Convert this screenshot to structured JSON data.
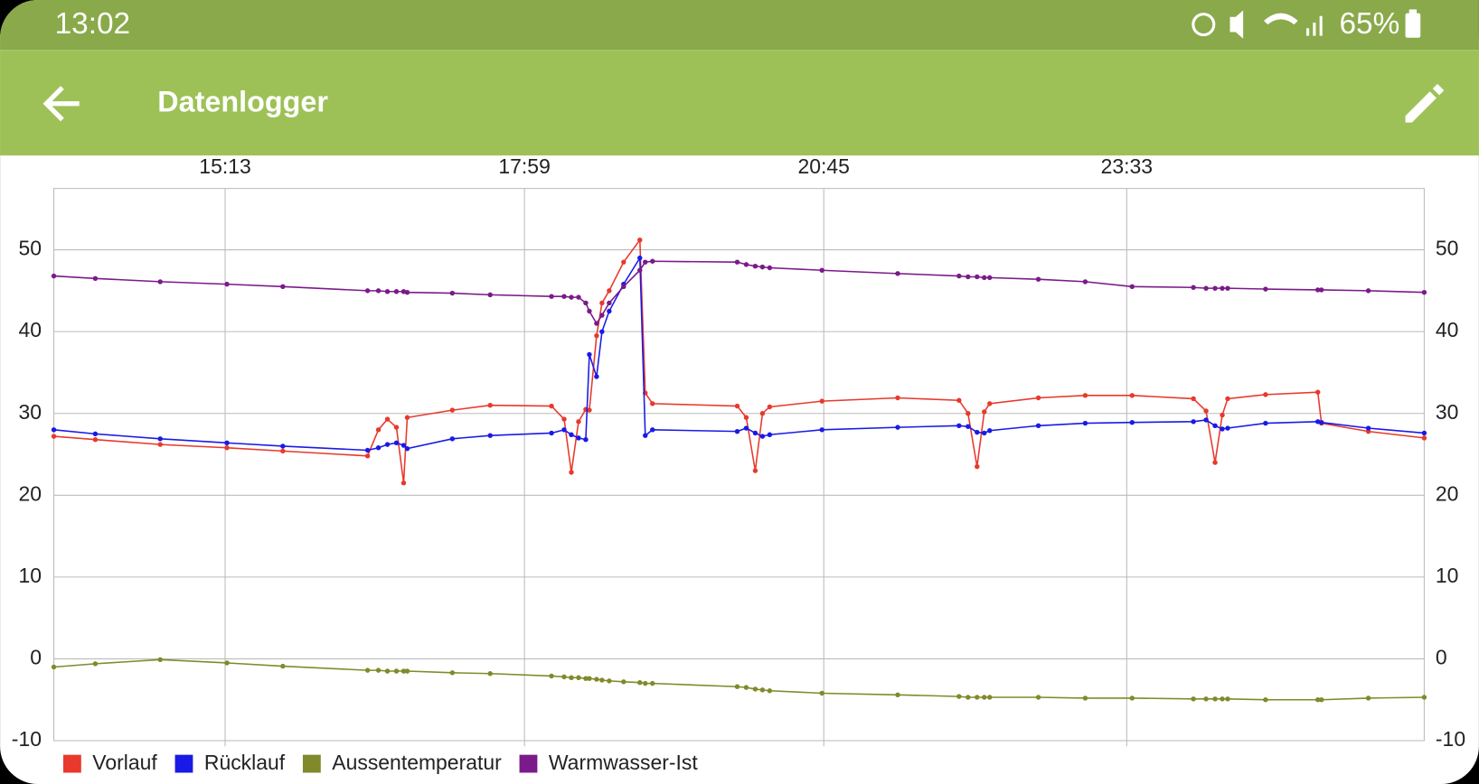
{
  "status_bar": {
    "time": "13:02",
    "battery": "65%"
  },
  "app_bar": {
    "title": "Datenlogger"
  },
  "chart_data": {
    "type": "line",
    "x": [
      818,
      841,
      877,
      914,
      945,
      992,
      998,
      1003,
      1008,
      1012,
      1014,
      1039,
      1060,
      1094,
      1101,
      1105,
      1109,
      1113,
      1115,
      1119,
      1122,
      1126,
      1134,
      1143,
      1146,
      1150,
      1197,
      1202,
      1207,
      1211,
      1215,
      1244,
      1286,
      1320,
      1325,
      1330,
      1334,
      1337,
      1364,
      1390,
      1416,
      1450,
      1457,
      1462,
      1466,
      1469,
      1490,
      1519,
      1521,
      1547,
      1578
    ],
    "xlim": [
      818,
      1578
    ],
    "xticks": [
      {
        "value": 913,
        "label": "15:13"
      },
      {
        "value": 1079,
        "label": "17:59"
      },
      {
        "value": 1245,
        "label": "20:45"
      },
      {
        "value": 1413,
        "label": "23:33"
      }
    ],
    "ylim": [
      -10,
      57.5
    ],
    "yticks": [
      -10,
      0,
      10,
      20,
      30,
      40,
      50
    ],
    "grid": true,
    "series": [
      {
        "name": "Vorlauf",
        "color": "#e8392c",
        "values": [
          27.2,
          26.8,
          26.2,
          25.8,
          25.4,
          24.8,
          28,
          29.3,
          28.3,
          21.5,
          29.5,
          30.4,
          31,
          30.9,
          29.3,
          22.8,
          29,
          30.5,
          30.4,
          39.5,
          43.5,
          45,
          48.5,
          51.2,
          32.5,
          31.2,
          30.9,
          29.5,
          23,
          30,
          30.8,
          31.5,
          31.9,
          31.6,
          30,
          23.5,
          30.2,
          31.2,
          31.9,
          32.2,
          32.2,
          31.8,
          30.3,
          24,
          29.8,
          31.8,
          32.3,
          32.6,
          28.8,
          27.8,
          27
        ]
      },
      {
        "name": "Rücklauf",
        "color": "#1a1ae6",
        "values": [
          28,
          27.5,
          26.9,
          26.4,
          26,
          25.5,
          25.8,
          26.2,
          26.4,
          26.1,
          25.7,
          26.9,
          27.3,
          27.6,
          28,
          27.4,
          27,
          26.8,
          37.2,
          34.5,
          40,
          42.5,
          45.8,
          49,
          27.3,
          28,
          27.8,
          28.2,
          27.6,
          27.2,
          27.4,
          28,
          28.3,
          28.5,
          28.4,
          27.7,
          27.6,
          27.9,
          28.5,
          28.8,
          28.9,
          29,
          29.2,
          28.5,
          28.1,
          28.2,
          28.8,
          29,
          28.9,
          28.2,
          27.6
        ]
      },
      {
        "name": "Aussentemperatur",
        "color": "#808a2a",
        "values": [
          -1,
          -0.6,
          -0.1,
          -0.5,
          -0.9,
          -1.4,
          -1.4,
          -1.5,
          -1.5,
          -1.5,
          -1.5,
          -1.7,
          -1.8,
          -2.1,
          -2.2,
          -2.3,
          -2.3,
          -2.4,
          -2.4,
          -2.5,
          -2.6,
          -2.7,
          -2.8,
          -2.9,
          -3,
          -3,
          -3.4,
          -3.5,
          -3.7,
          -3.8,
          -3.9,
          -4.2,
          -4.4,
          -4.6,
          -4.7,
          -4.7,
          -4.7,
          -4.7,
          -4.7,
          -4.8,
          -4.8,
          -4.9,
          -4.9,
          -4.9,
          -4.9,
          -4.9,
          -5,
          -5,
          -5,
          -4.8,
          -4.7
        ]
      },
      {
        "name": "Warmwasser-Ist",
        "color": "#7b1a8a",
        "values": [
          46.8,
          46.5,
          46.1,
          45.8,
          45.5,
          45,
          45,
          44.9,
          44.9,
          44.9,
          44.8,
          44.7,
          44.5,
          44.3,
          44.3,
          44.2,
          44.2,
          43.5,
          42.5,
          41,
          42,
          43.5,
          45.5,
          47.5,
          48.5,
          48.6,
          48.5,
          48.2,
          48,
          47.9,
          47.8,
          47.5,
          47.1,
          46.8,
          46.7,
          46.7,
          46.6,
          46.6,
          46.4,
          46.1,
          45.5,
          45.4,
          45.3,
          45.3,
          45.3,
          45.3,
          45.2,
          45.1,
          45.1,
          45,
          44.8
        ]
      }
    ]
  }
}
